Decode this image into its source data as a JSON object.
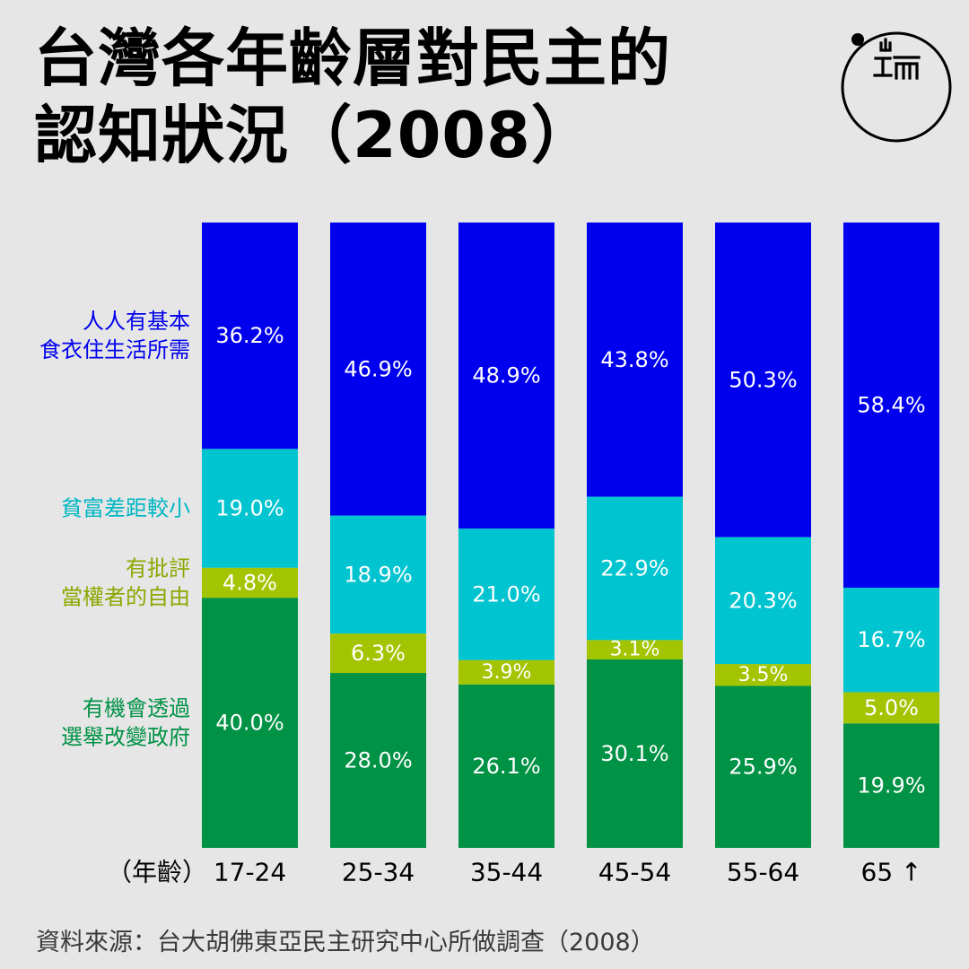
{
  "title": {
    "line1": "台灣各年齡層對民主的",
    "line2": "認知狀況（2008）"
  },
  "source": "資料來源：台大胡佛東亞民主研究中心所做調查（2008）",
  "logo_text": "端",
  "colors": {
    "background": "#e6e6e6",
    "basic_needs": "#0000ee",
    "small_gap": "#00c4cf",
    "criticize": "#a3c400",
    "change_gov": "#009245"
  },
  "chart_data": {
    "type": "bar",
    "stacked": true,
    "normalized_to": 100,
    "categories": [
      "17-24",
      "25-34",
      "35-44",
      "45-54",
      "55-64",
      "65 ↑"
    ],
    "xlabel": "（年齡）",
    "grid": false,
    "legend_position": "left",
    "series": [
      {
        "name": "有機會透過選舉改變政府",
        "legend_lines": [
          "有機會透過",
          "選舉改變政府"
        ],
        "color": "#009245",
        "values": [
          40.0,
          28.0,
          26.1,
          30.1,
          25.9,
          19.9
        ],
        "labels": [
          "40.0%",
          "28.0%",
          "26.1%",
          "30.1%",
          "25.9%",
          "19.9%"
        ]
      },
      {
        "name": "有批評當權者的自由",
        "legend_lines": [
          "有批評",
          "當權者的自由"
        ],
        "color": "#a3c400",
        "values": [
          4.8,
          6.3,
          3.9,
          3.1,
          3.5,
          5.0
        ],
        "labels": [
          "4.8%",
          "6.3%",
          "3.9%",
          "3.1%",
          "3.5%",
          "5.0%"
        ]
      },
      {
        "name": "貧富差距較小",
        "legend_lines": [
          "貧富差距較小"
        ],
        "color": "#00c4cf",
        "values": [
          19.0,
          18.9,
          21.0,
          22.9,
          20.3,
          16.7
        ],
        "labels": [
          "19.0%",
          "18.9%",
          "21.0%",
          "22.9%",
          "20.3%",
          "16.7%"
        ]
      },
      {
        "name": "人人有基本食衣住生活所需",
        "legend_lines": [
          "人人有基本",
          "食衣住生活所需"
        ],
        "color": "#0000ee",
        "values": [
          36.2,
          46.9,
          48.9,
          43.8,
          50.3,
          58.4
        ],
        "labels": [
          "36.2%",
          "46.9%",
          "48.9%",
          "43.8%",
          "50.3%",
          "58.4%"
        ]
      }
    ]
  }
}
